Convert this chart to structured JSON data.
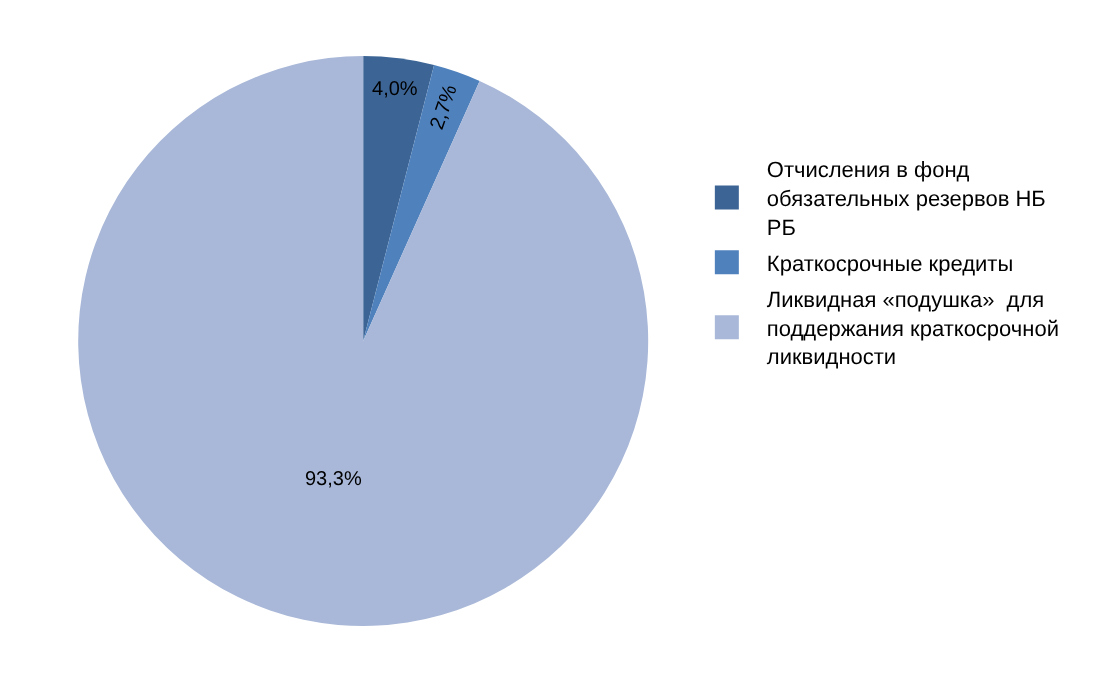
{
  "chart_data": {
    "type": "pie",
    "categories": [
      "Отчисления в фонд обязательных резервов НБ РБ",
      "Краткосрочные кредиты",
      "Ликвидная «подушка»  для поддержания краткосрочной ликвидности"
    ],
    "values": [
      4.0,
      2.7,
      93.3
    ],
    "value_labels": [
      "4,0%",
      "2,7%",
      "93,3%"
    ],
    "colors": [
      "#3c6596",
      "#4f81bd",
      "#a9b8d8"
    ],
    "legend": "right"
  }
}
